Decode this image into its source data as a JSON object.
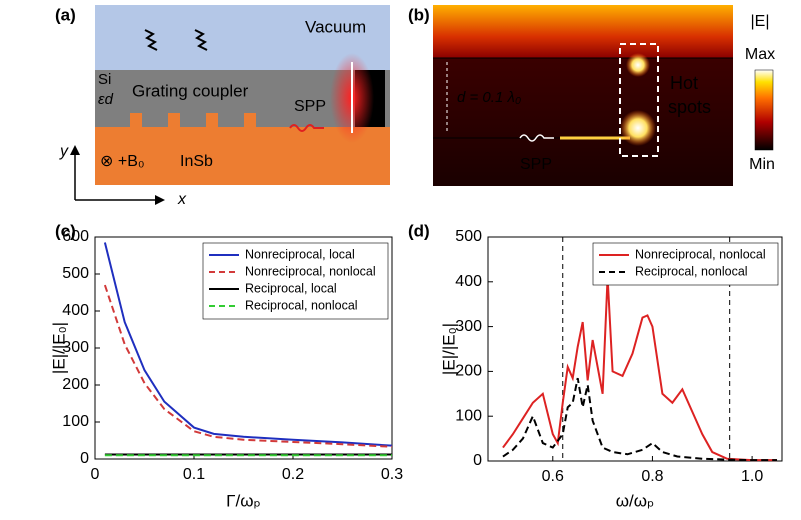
{
  "panel_a": {
    "label": "(a)",
    "vacuum": "Vacuum",
    "si": "Si",
    "eps": "εd",
    "grating": "Grating coupler",
    "spp": "SPP",
    "field": "⊗ +B₀",
    "insb": "InSb",
    "y_axis": "y",
    "x_axis": "x"
  },
  "panel_b": {
    "label": "(b)",
    "distance": "d = 0.1 λ₀",
    "hot": "Hot",
    "spots": "spots",
    "spp": "SPP",
    "colorbar_title": "|E|",
    "max": "Max",
    "min": "Min"
  },
  "chart_data": [
    {
      "type": "line",
      "panel_label": "(c)",
      "xlabel": "Γ/ωₚ",
      "ylabel": "|E|/|E₀|",
      "xlim": [
        0,
        0.3
      ],
      "xticks": [
        0,
        0.1,
        0.2,
        0.3
      ],
      "ylim": [
        0,
        600
      ],
      "yticks": [
        0,
        100,
        200,
        300,
        400,
        500,
        600
      ],
      "legend": "upper right",
      "x": [
        0.01,
        0.03,
        0.05,
        0.07,
        0.1,
        0.12,
        0.15,
        0.2,
        0.25,
        0.3
      ],
      "series": [
        {
          "name": "Nonreciprocal, local",
          "color": "#1f2fbf",
          "style": "solid",
          "values": [
            585,
            370,
            240,
            155,
            85,
            68,
            60,
            52,
            45,
            36
          ]
        },
        {
          "name": "Nonreciprocal, nonlocal",
          "color": "#d23a3a",
          "style": "dashed",
          "values": [
            470,
            310,
            205,
            135,
            75,
            60,
            52,
            46,
            40,
            33
          ]
        },
        {
          "name": "Reciprocal, local",
          "color": "#000000",
          "style": "solid",
          "values": [
            12,
            12,
            12,
            12,
            12,
            12,
            12,
            12,
            12,
            12
          ]
        },
        {
          "name": "Reciprocal, nonlocal",
          "color": "#33cc33",
          "style": "dashed",
          "values": [
            10,
            10,
            10,
            10,
            10,
            10,
            10,
            10,
            10,
            10
          ]
        }
      ]
    },
    {
      "type": "line",
      "panel_label": "(d)",
      "xlabel": "ω/ωₚ",
      "ylabel": "|E|/|E₀|",
      "xlim": [
        0.47,
        1.06
      ],
      "xticks": [
        0.6,
        0.8,
        {
          "value": 1.0,
          "label": "1.0"
        }
      ],
      "ylim": [
        0,
        500
      ],
      "yticks": [
        0,
        100,
        200,
        300,
        400,
        500
      ],
      "legend": "upper right",
      "vlines": [
        0.62,
        0.955
      ],
      "series": [
        {
          "name": "Nonreciprocal, nonlocal",
          "color": "#dd2222",
          "style": "solid",
          "x": [
            0.5,
            0.52,
            0.54,
            0.56,
            0.58,
            0.6,
            0.61,
            0.62,
            0.63,
            0.64,
            0.65,
            0.66,
            0.67,
            0.68,
            0.69,
            0.7,
            0.71,
            0.72,
            0.74,
            0.76,
            0.78,
            0.79,
            0.8,
            0.82,
            0.84,
            0.86,
            0.88,
            0.9,
            0.92,
            0.95,
            0.98,
            1.0,
            1.05
          ],
          "values": [
            30,
            60,
            95,
            130,
            150,
            60,
            40,
            130,
            210,
            185,
            255,
            310,
            180,
            270,
            210,
            150,
            410,
            200,
            190,
            240,
            320,
            325,
            300,
            150,
            130,
            160,
            110,
            60,
            20,
            5,
            3,
            2,
            2
          ]
        },
        {
          "name": "Reciprocal, nonlocal",
          "color": "#000000",
          "style": "dashed",
          "x": [
            0.5,
            0.52,
            0.54,
            0.56,
            0.58,
            0.6,
            0.62,
            0.63,
            0.64,
            0.65,
            0.66,
            0.67,
            0.68,
            0.7,
            0.72,
            0.75,
            0.78,
            0.8,
            0.82,
            0.85,
            0.9,
            0.95,
            1.0,
            1.05
          ],
          "values": [
            10,
            25,
            50,
            100,
            40,
            30,
            60,
            120,
            130,
            185,
            120,
            170,
            90,
            30,
            20,
            15,
            25,
            40,
            20,
            10,
            5,
            3,
            2,
            2
          ]
        }
      ]
    }
  ]
}
